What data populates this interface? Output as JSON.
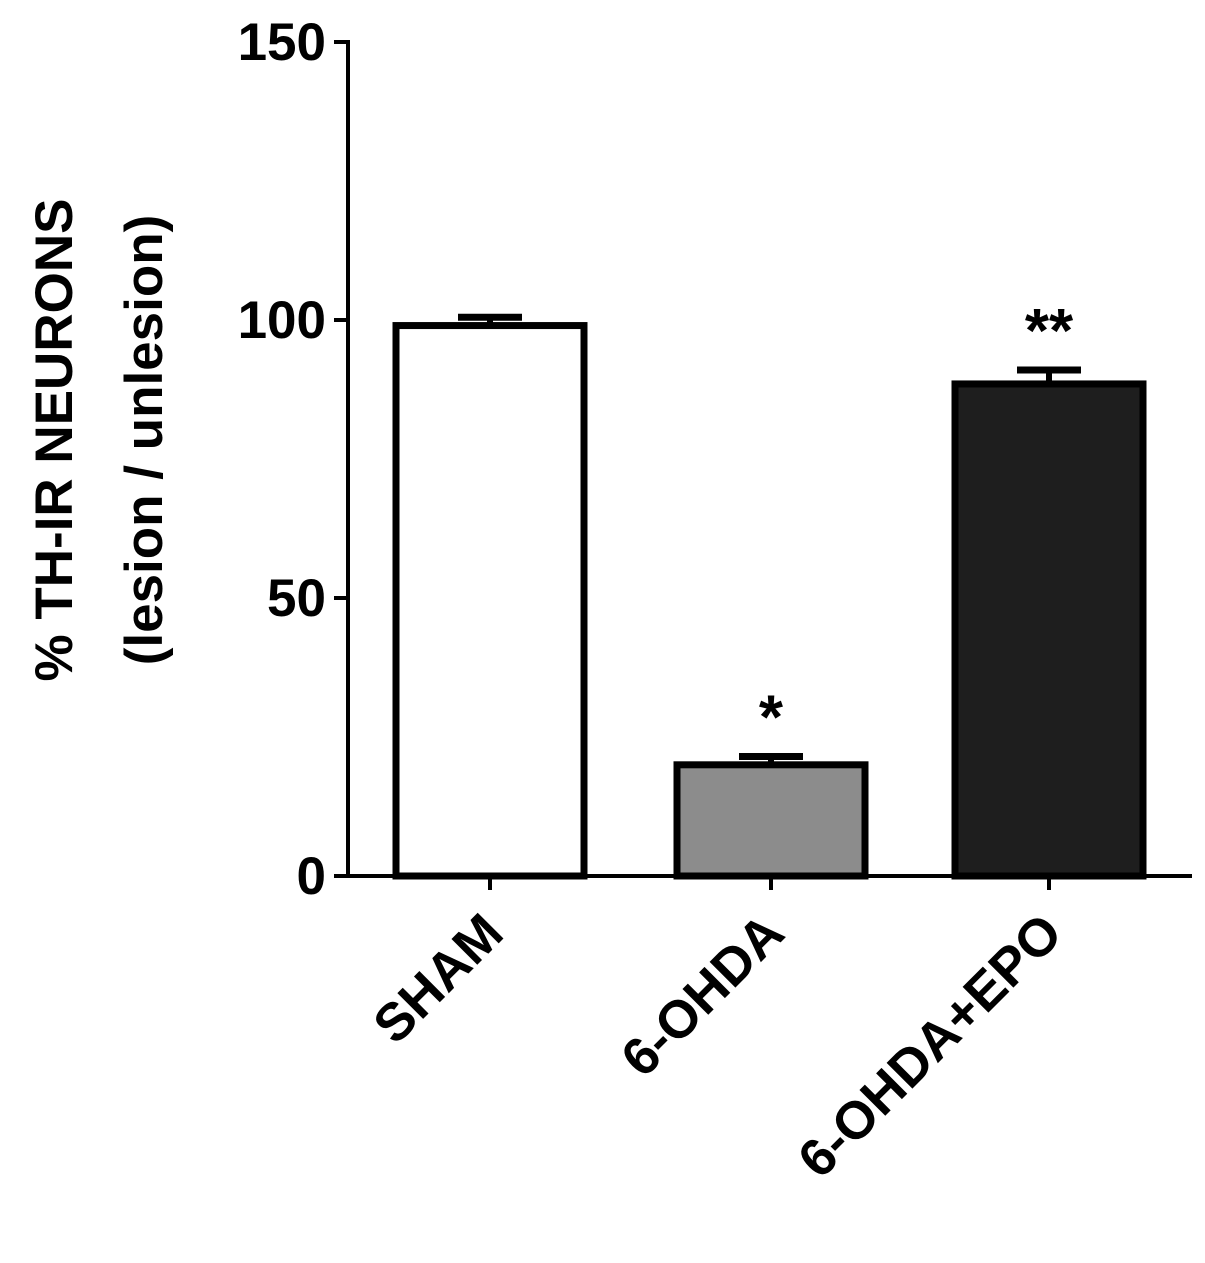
{
  "chart_data": {
    "type": "bar",
    "title": "",
    "xlabel": "",
    "ylabel_lines": [
      "% TH-IR NEURONS",
      "(lesion / unlesion)"
    ],
    "ylim": [
      0,
      150
    ],
    "yticks": [
      0,
      50,
      100,
      150
    ],
    "ytick_labels": [
      "0",
      "50",
      "100",
      "150"
    ],
    "categories": [
      "SHAM",
      "6-OHDA",
      "6-OHDA+EPO"
    ],
    "values": [
      99,
      20,
      88.5
    ],
    "errors": [
      1.5,
      1.5,
      2.5
    ],
    "significance": [
      "",
      "*",
      "**"
    ],
    "colors": [
      "#ffffff",
      "#8c8c8c",
      "#1e1e1e"
    ],
    "grid": false,
    "legend": "none"
  }
}
